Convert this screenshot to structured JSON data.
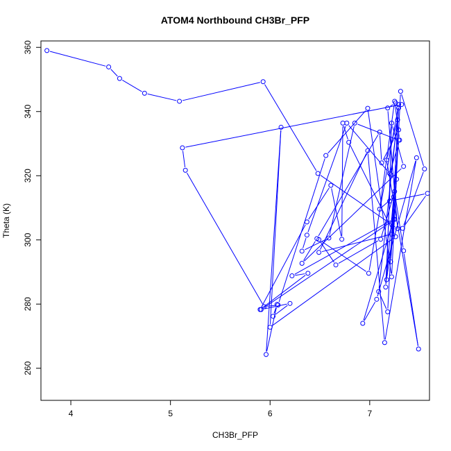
{
  "chart_data": {
    "type": "line",
    "title": "ATOM4 Northbound CH3Br_PFP",
    "xlabel": "CH3Br_PFP",
    "ylabel": "Theta (K)",
    "xlim": [
      3.7,
      7.6
    ],
    "ylim": [
      250,
      362
    ],
    "xticks": [
      4,
      5,
      6,
      7
    ],
    "yticks": [
      260,
      280,
      300,
      320,
      340,
      360
    ],
    "grid": false,
    "legend": "none",
    "color": "#0000ff",
    "marker": "open-circle",
    "series": [
      {
        "x": [
          3.76,
          4.38,
          4.49,
          4.74,
          5.09,
          5.93,
          6.48,
          7.28,
          7.18,
          7.26,
          7.32,
          5.12,
          5.15,
          5.94,
          6.08,
          6.56,
          6.98,
          7.22,
          7.31,
          7.55,
          7.33,
          7.58,
          7.2,
          7.24,
          7.1,
          7.25,
          7.3,
          7.2,
          6.77,
          6.37,
          6.32,
          6.59,
          6.85,
          7.29,
          7.16,
          7.21,
          7.28,
          7.17,
          7.49,
          7.34,
          7.25,
          7.11,
          6.66,
          6.49,
          6.99,
          7.29,
          7.18,
          7.09,
          7.29,
          7.22,
          6.49,
          6.98,
          7.15,
          7.47,
          7.07,
          6.93,
          7.24,
          6.22,
          6.38,
          5.9,
          6.37,
          6.61,
          6.72,
          6.73,
          6.79,
          7.26,
          6.0,
          6.11,
          5.96,
          6.07,
          6.03,
          6.2,
          5.91,
          7.25,
          7.17,
          7.22,
          7.34,
          6.32,
          6.47,
          7.1,
          7.12,
          7.29,
          7.21,
          7.27
        ],
        "y": [
          359,
          353.9,
          350.3,
          345.7,
          343.2,
          349.3,
          320.7,
          303.5,
          341.1,
          342.7,
          342.2,
          328.7,
          321.7,
          279.2,
          279.7,
          326.3,
          341.0,
          288.5,
          346.3,
          322.1,
          303.6,
          314.5,
          312.1,
          313.4,
          309.6,
          343.2,
          331.1,
          320.7,
          336.4,
          301.5,
          296.5,
          300.6,
          336.4,
          331.1,
          285.3,
          320.3,
          337.4,
          324.9,
          266.0,
          296.6,
          315.1,
          300.2,
          292.2,
          300.1,
          289.6,
          342.2,
          277.6,
          283.9,
          341.1,
          301.8,
          296.1,
          327.8,
          268.0,
          325.6,
          281.5,
          274.0,
          306.5,
          288.8,
          289.6,
          278.3,
          305.6,
          317.0,
          300.2,
          336.4,
          330.4,
          301.0,
          272.8,
          335.1,
          264.3,
          279.9,
          276.2,
          280.2,
          278.3,
          306.4,
          287.6,
          336.4,
          322.9,
          292.7,
          300.4,
          333.6,
          324.0,
          334.3,
          293.2,
          318.9
        ]
      }
    ]
  }
}
